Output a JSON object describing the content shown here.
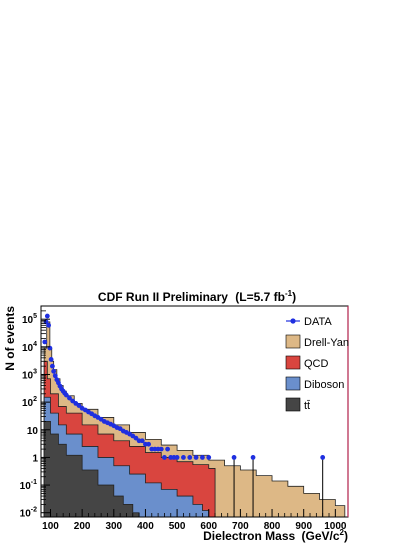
{
  "chart_data": {
    "type": "area",
    "title": "CDF Run II Preliminary",
    "title_lumi": "(L=5.7 fb",
    "title_lumi_exp": "-1",
    "title_lumi_close": ")",
    "xlabel": "Dielectron Mass",
    "xlabel_unit": "(GeV/c",
    "xlabel_unit_exp": "2",
    "xlabel_unit_close": ")",
    "ylabel": "N of events",
    "xlim": [
      70,
      1040
    ],
    "ylim": [
      0.007,
      300000
    ],
    "yscale": "log",
    "stacked": true,
    "x_ticks": [
      "100",
      "200",
      "300",
      "400",
      "500",
      "600",
      "700",
      "800",
      "900",
      "1000"
    ],
    "y_ticks": [
      {
        "base": "10",
        "exp": "5"
      },
      {
        "base": "10",
        "exp": "4"
      },
      {
        "base": "10",
        "exp": "3"
      },
      {
        "base": "10",
        "exp": "2"
      },
      {
        "base": "10",
        "exp": ""
      },
      {
        "base": "1",
        "exp": ""
      },
      {
        "base": "10",
        "exp": "-1"
      },
      {
        "base": "10",
        "exp": "-2"
      }
    ],
    "legend": {
      "position": "top-right",
      "entries": [
        "DATA",
        "Drell-Yan",
        "QCD",
        "Diboson",
        "tt̄"
      ]
    },
    "colors": {
      "data": "#1f2fe0",
      "drell_yan": "#ddb886",
      "qcd": "#d9453f",
      "diboson": "#6a8fcc",
      "ttbar": "#454545",
      "frame_right": "#b0204a"
    },
    "series_total_stack": [
      {
        "x": 80,
        "y": 9000
      },
      {
        "x": 88,
        "y": 60000
      },
      {
        "x": 92,
        "y": 80000
      },
      {
        "x": 98,
        "y": 9000
      },
      {
        "x": 104,
        "y": 3000
      },
      {
        "x": 110,
        "y": 1500
      },
      {
        "x": 120,
        "y": 700
      },
      {
        "x": 130,
        "y": 400
      },
      {
        "x": 140,
        "y": 250
      },
      {
        "x": 150,
        "y": 170
      },
      {
        "x": 175,
        "y": 90
      },
      {
        "x": 200,
        "y": 55
      },
      {
        "x": 250,
        "y": 28
      },
      {
        "x": 300,
        "y": 15
      },
      {
        "x": 350,
        "y": 8
      },
      {
        "x": 400,
        "y": 4.5
      },
      {
        "x": 450,
        "y": 2.8
      },
      {
        "x": 500,
        "y": 1.8
      },
      {
        "x": 550,
        "y": 1.2
      },
      {
        "x": 600,
        "y": 0.8
      },
      {
        "x": 650,
        "y": 0.5
      },
      {
        "x": 700,
        "y": 0.35
      },
      {
        "x": 750,
        "y": 0.22
      },
      {
        "x": 800,
        "y": 0.14
      },
      {
        "x": 850,
        "y": 0.09
      },
      {
        "x": 900,
        "y": 0.05
      },
      {
        "x": 950,
        "y": 0.03
      },
      {
        "x": 1000,
        "y": 0.018
      },
      {
        "x": 1030,
        "y": 0.012
      }
    ],
    "series_qcd_diboson_ttbar": [
      {
        "x": 80,
        "y": 3000
      },
      {
        "x": 90,
        "y": 700
      },
      {
        "x": 100,
        "y": 200
      },
      {
        "x": 125,
        "y": 70
      },
      {
        "x": 150,
        "y": 40
      },
      {
        "x": 200,
        "y": 15
      },
      {
        "x": 250,
        "y": 7
      },
      {
        "x": 300,
        "y": 4
      },
      {
        "x": 350,
        "y": 2.5
      },
      {
        "x": 400,
        "y": 1.5
      },
      {
        "x": 450,
        "y": 1.0
      },
      {
        "x": 500,
        "y": 0.7
      },
      {
        "x": 550,
        "y": 0.55
      },
      {
        "x": 600,
        "y": 0.4
      },
      {
        "x": 620,
        "y": 0.01
      }
    ],
    "series_diboson_ttbar": [
      {
        "x": 80,
        "y": 150
      },
      {
        "x": 100,
        "y": 40
      },
      {
        "x": 125,
        "y": 15
      },
      {
        "x": 150,
        "y": 7
      },
      {
        "x": 200,
        "y": 2.5
      },
      {
        "x": 250,
        "y": 1.0
      },
      {
        "x": 300,
        "y": 0.5
      },
      {
        "x": 350,
        "y": 0.25
      },
      {
        "x": 400,
        "y": 0.12
      },
      {
        "x": 450,
        "y": 0.07
      },
      {
        "x": 500,
        "y": 0.04
      },
      {
        "x": 550,
        "y": 0.02
      },
      {
        "x": 580,
        "y": 0.012
      },
      {
        "x": 600,
        "y": 0.009
      }
    ],
    "series_ttbar": [
      {
        "x": 80,
        "y": 20
      },
      {
        "x": 100,
        "y": 7
      },
      {
        "x": 125,
        "y": 3
      },
      {
        "x": 150,
        "y": 1.2
      },
      {
        "x": 200,
        "y": 0.35
      },
      {
        "x": 250,
        "y": 0.1
      },
      {
        "x": 300,
        "y": 0.04
      },
      {
        "x": 330,
        "y": 0.02
      },
      {
        "x": 360,
        "y": 0.01
      },
      {
        "x": 380,
        "y": 0.008
      }
    ],
    "data_points": [
      {
        "x": 82,
        "y": 15000
      },
      {
        "x": 86,
        "y": 80000
      },
      {
        "x": 90,
        "y": 130000
      },
      {
        "x": 94,
        "y": 60000
      },
      {
        "x": 98,
        "y": 9000
      },
      {
        "x": 102,
        "y": 3500
      },
      {
        "x": 106,
        "y": 2000
      },
      {
        "x": 110,
        "y": 1300
      },
      {
        "x": 115,
        "y": 900
      },
      {
        "x": 120,
        "y": 650
      },
      {
        "x": 125,
        "y": 500
      },
      {
        "x": 130,
        "y": 380
      },
      {
        "x": 135,
        "y": 300
      },
      {
        "x": 140,
        "y": 250
      },
      {
        "x": 145,
        "y": 210
      },
      {
        "x": 150,
        "y": 180
      },
      {
        "x": 160,
        "y": 140
      },
      {
        "x": 170,
        "y": 110
      },
      {
        "x": 180,
        "y": 90
      },
      {
        "x": 190,
        "y": 75
      },
      {
        "x": 200,
        "y": 60
      },
      {
        "x": 210,
        "y": 52
      },
      {
        "x": 220,
        "y": 44
      },
      {
        "x": 230,
        "y": 38
      },
      {
        "x": 240,
        "y": 32
      },
      {
        "x": 250,
        "y": 28
      },
      {
        "x": 260,
        "y": 24
      },
      {
        "x": 270,
        "y": 20
      },
      {
        "x": 280,
        "y": 18
      },
      {
        "x": 290,
        "y": 16
      },
      {
        "x": 300,
        "y": 14
      },
      {
        "x": 310,
        "y": 12
      },
      {
        "x": 320,
        "y": 11
      },
      {
        "x": 330,
        "y": 9
      },
      {
        "x": 340,
        "y": 8
      },
      {
        "x": 350,
        "y": 7
      },
      {
        "x": 360,
        "y": 6
      },
      {
        "x": 370,
        "y": 5
      },
      {
        "x": 380,
        "y": 4
      },
      {
        "x": 390,
        "y": 4
      },
      {
        "x": 400,
        "y": 3
      },
      {
        "x": 410,
        "y": 3
      },
      {
        "x": 420,
        "y": 2
      },
      {
        "x": 430,
        "y": 2
      },
      {
        "x": 440,
        "y": 2
      },
      {
        "x": 450,
        "y": 2
      },
      {
        "x": 460,
        "y": 1
      },
      {
        "x": 470,
        "y": 2
      },
      {
        "x": 480,
        "y": 1
      },
      {
        "x": 490,
        "y": 1
      },
      {
        "x": 500,
        "y": 1
      },
      {
        "x": 520,
        "y": 1
      },
      {
        "x": 540,
        "y": 1
      },
      {
        "x": 560,
        "y": 1
      },
      {
        "x": 580,
        "y": 1
      },
      {
        "x": 600,
        "y": 1
      },
      {
        "x": 680,
        "y": 1
      },
      {
        "x": 740,
        "y": 1
      },
      {
        "x": 960,
        "y": 1
      }
    ]
  }
}
